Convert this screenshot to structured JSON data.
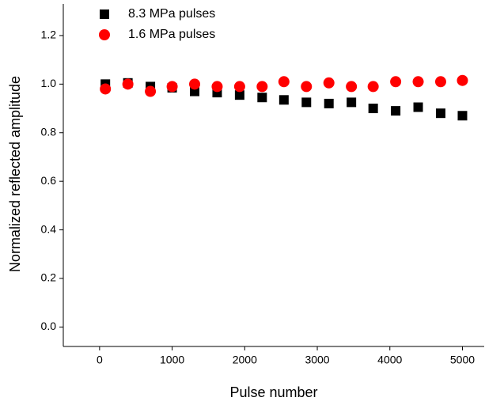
{
  "chart_data": {
    "type": "scatter",
    "x_label": "Pulse number",
    "y_label": "Normalized reflected amplitude",
    "xlim": [
      -500,
      5300
    ],
    "ylim": [
      -0.08,
      1.33
    ],
    "xticks": [
      0,
      1000,
      2000,
      3000,
      4000,
      5000
    ],
    "yticks": [
      {
        "value": 0,
        "label": "0.0"
      },
      0.2,
      0.4,
      0.6,
      0.8,
      {
        "value": 1,
        "label": "1.0"
      },
      1.2
    ],
    "legend": "top-left",
    "series": [
      {
        "name": "8.3 MPa pulses",
        "color": "#000000",
        "marker": "square",
        "x": [
          80,
          390,
          700,
          1000,
          1310,
          1620,
          1930,
          2240,
          2540,
          2850,
          3160,
          3470,
          3770,
          4080,
          4390,
          4700,
          5000
        ],
        "values": [
          1.0,
          1.005,
          0.99,
          0.985,
          0.97,
          0.965,
          0.955,
          0.945,
          0.935,
          0.925,
          0.92,
          0.925,
          0.9,
          0.89,
          0.905,
          0.88,
          0.87
        ]
      },
      {
        "name": "1.6 MPa pulses",
        "color": "#ff0000",
        "marker": "circle",
        "x": [
          80,
          390,
          700,
          1000,
          1310,
          1620,
          1930,
          2240,
          2540,
          2850,
          3160,
          3470,
          3770,
          4080,
          4390,
          4700,
          5000
        ],
        "values": [
          0.98,
          1.0,
          0.97,
          0.99,
          1.0,
          0.99,
          0.99,
          0.99,
          1.01,
          0.99,
          1.005,
          0.99,
          0.99,
          1.01,
          1.01,
          1.01,
          1.015
        ]
      }
    ]
  }
}
